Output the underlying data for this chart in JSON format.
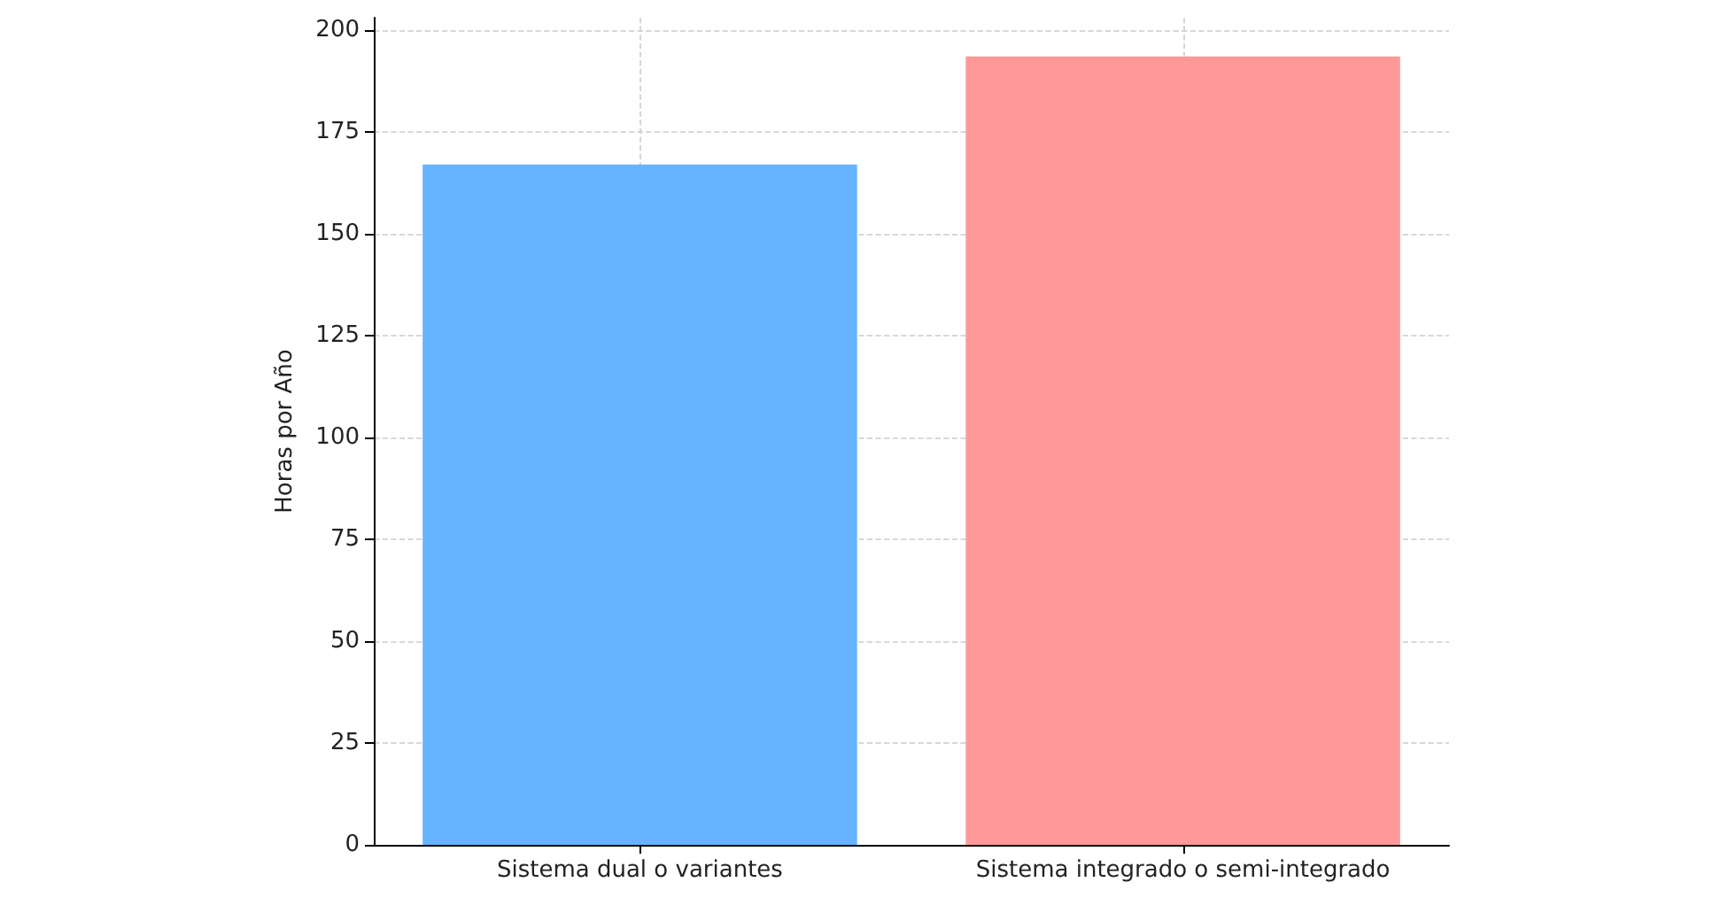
{
  "chart_data": {
    "type": "bar",
    "ylabel": "Horas por Año",
    "categories": [
      "Sistema dual o variantes",
      "Sistema integrado o semi-integrado"
    ],
    "values": [
      167,
      193.5
    ],
    "colors": [
      "#66b3ff",
      "#ff9999"
    ],
    "ylim": [
      0,
      203
    ],
    "yticks": [
      0,
      25,
      50,
      75,
      100,
      125,
      150,
      175,
      200
    ],
    "grid": true
  }
}
